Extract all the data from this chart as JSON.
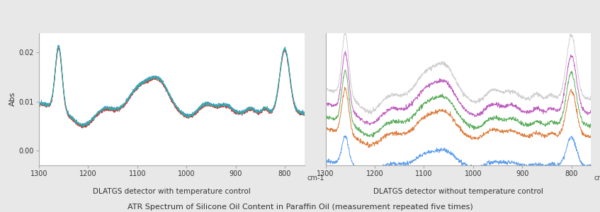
{
  "xlim": [
    1300,
    760
  ],
  "ylim": [
    -0.003,
    0.024
  ],
  "yticks": [
    0.0,
    0.01,
    0.02
  ],
  "xticks": [
    1300,
    1200,
    1100,
    1000,
    900,
    800
  ],
  "xlabel": "cm-1",
  "ylabel": "Abs",
  "title": "ATR Spectrum of Silicone Oil Content in Paraffin Oil (measurement repeated five times)",
  "subtitle_left": "DLATGS detector with temperature control",
  "subtitle_right": "DLATGS detector without temperature control",
  "left_colors": [
    "#888888",
    "#33bb33",
    "#cc3333",
    "#4499cc",
    "#33aaaa"
  ],
  "right_colors": [
    "#cccccc",
    "#bb55bb",
    "#55aa55",
    "#dd7733",
    "#5599ee"
  ],
  "background": "#e8e8e8"
}
